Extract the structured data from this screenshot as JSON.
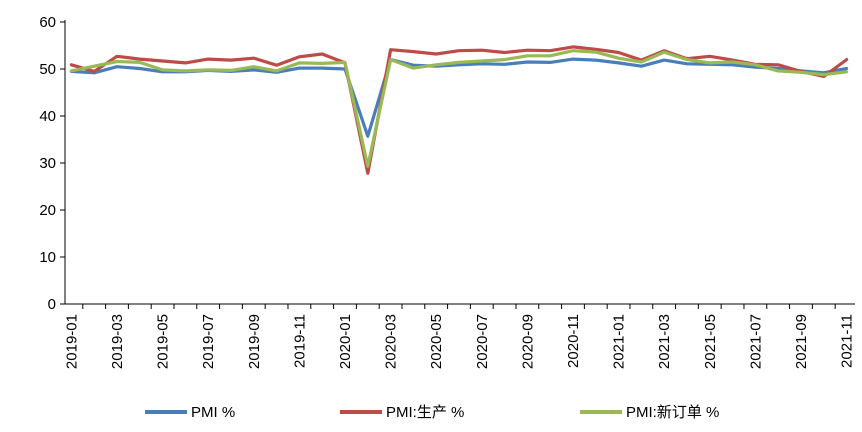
{
  "chart_data": {
    "type": "line",
    "title": "",
    "xlabel": "",
    "ylabel": "",
    "ylim": [
      0,
      60
    ],
    "yticks": [
      0,
      10,
      20,
      30,
      40,
      50,
      60
    ],
    "x": [
      "2019-01",
      "2019-02",
      "2019-03",
      "2019-04",
      "2019-05",
      "2019-06",
      "2019-07",
      "2019-08",
      "2019-09",
      "2019-10",
      "2019-11",
      "2019-12",
      "2020-01",
      "2020-02",
      "2020-03",
      "2020-04",
      "2020-05",
      "2020-06",
      "2020-07",
      "2020-08",
      "2020-09",
      "2020-10",
      "2020-11",
      "2020-12",
      "2021-01",
      "2021-02",
      "2021-03",
      "2021-04",
      "2021-05",
      "2021-06",
      "2021-07",
      "2021-08",
      "2021-09",
      "2021-10",
      "2021-11"
    ],
    "xtick_labels": [
      "2019-01",
      "2019-03",
      "2019-05",
      "2019-07",
      "2019-09",
      "2019-11",
      "2020-01",
      "2020-03",
      "2020-05",
      "2020-07",
      "2020-09",
      "2020-11",
      "2021-01",
      "2021-03",
      "2021-05",
      "2021-07",
      "2021-09",
      "2021-11"
    ],
    "grid": false,
    "legend_position": "bottom",
    "series": [
      {
        "name": "PMI  %",
        "color": "#4a7ebb",
        "values": [
          49.5,
          49.2,
          50.5,
          50.1,
          49.4,
          49.4,
          49.7,
          49.5,
          49.8,
          49.3,
          50.2,
          50.2,
          50.0,
          35.7,
          52.0,
          50.8,
          50.6,
          50.9,
          51.1,
          51.0,
          51.5,
          51.4,
          52.1,
          51.9,
          51.3,
          50.6,
          51.9,
          51.1,
          51.0,
          50.9,
          50.4,
          50.1,
          49.6,
          49.2,
          50.1
        ]
      },
      {
        "name": "PMI:生产  %",
        "color": "#be4b48",
        "values": [
          50.9,
          49.5,
          52.7,
          52.1,
          51.7,
          51.3,
          52.1,
          51.9,
          52.3,
          50.8,
          52.6,
          53.2,
          51.3,
          27.8,
          54.1,
          53.7,
          53.2,
          53.9,
          54.0,
          53.5,
          54.0,
          53.9,
          54.7,
          54.2,
          53.5,
          51.9,
          53.9,
          52.2,
          52.7,
          51.9,
          51.0,
          50.9,
          49.5,
          48.4,
          52.0
        ]
      },
      {
        "name": "PMI:新订单  %",
        "color": "#98b954",
        "values": [
          49.6,
          50.6,
          51.6,
          51.4,
          49.8,
          49.6,
          49.8,
          49.7,
          50.5,
          49.6,
          51.3,
          51.2,
          51.4,
          29.3,
          52.0,
          50.2,
          50.9,
          51.4,
          51.7,
          52.0,
          52.8,
          52.8,
          53.9,
          53.6,
          52.3,
          51.5,
          53.6,
          52.0,
          51.3,
          51.5,
          50.9,
          49.6,
          49.3,
          48.8,
          49.4
        ]
      }
    ]
  }
}
